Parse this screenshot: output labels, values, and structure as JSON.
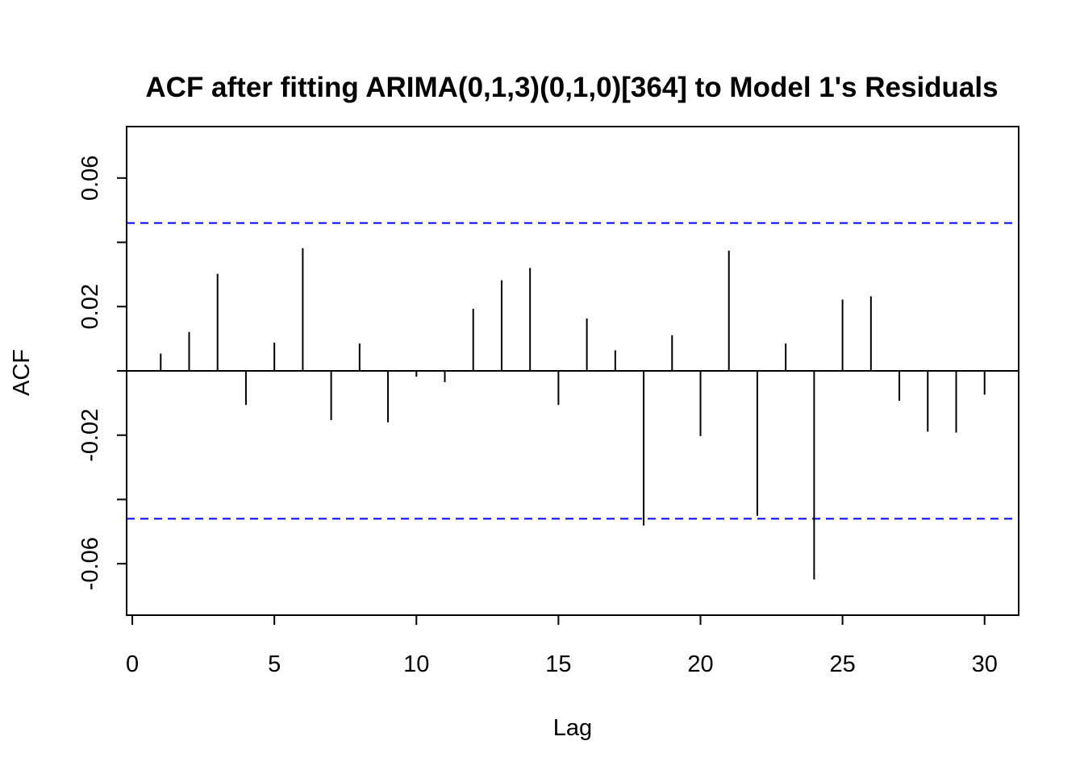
{
  "chart_data": {
    "type": "bar",
    "title": "ACF after fitting ARIMA(0,1,3)(0,1,0)[364] to Model 1's Residuals",
    "xlabel": "Lag",
    "ylabel": "ACF",
    "xlim": [
      -0.2,
      31.2
    ],
    "ylim": [
      -0.076,
      0.076
    ],
    "x_ticks": [
      0,
      5,
      10,
      15,
      20,
      25,
      30
    ],
    "y_ticks": [
      -0.06,
      -0.04,
      -0.02,
      0,
      0.02,
      0.04,
      0.06
    ],
    "y_tick_labels": [
      {
        "value": -0.06,
        "label": "-0.06"
      },
      {
        "value": -0.02,
        "label": "-0.02"
      },
      {
        "value": 0.02,
        "label": "0.02"
      },
      {
        "value": 0.06,
        "label": "0.06"
      }
    ],
    "confidence_bounds": [
      0.046,
      -0.046
    ],
    "confidence_color": "#0000ff",
    "bar_color": "#000000",
    "lags": [
      1,
      2,
      3,
      4,
      5,
      6,
      7,
      8,
      9,
      10,
      11,
      12,
      13,
      14,
      15,
      16,
      17,
      18,
      19,
      20,
      21,
      22,
      23,
      24,
      25,
      26,
      27,
      28,
      29,
      30
    ],
    "values": [
      0.0054,
      0.0121,
      0.0302,
      -0.0106,
      0.0088,
      0.0382,
      -0.0153,
      0.0085,
      -0.016,
      -0.0018,
      -0.0035,
      0.0193,
      0.0282,
      0.032,
      -0.0106,
      0.0163,
      0.0064,
      -0.0481,
      0.0111,
      -0.0203,
      0.0374,
      -0.0451,
      0.0085,
      -0.0649,
      0.0222,
      0.0232,
      -0.0093,
      -0.0189,
      -0.0192,
      -0.0074
    ],
    "grid": false,
    "legend": "none"
  }
}
